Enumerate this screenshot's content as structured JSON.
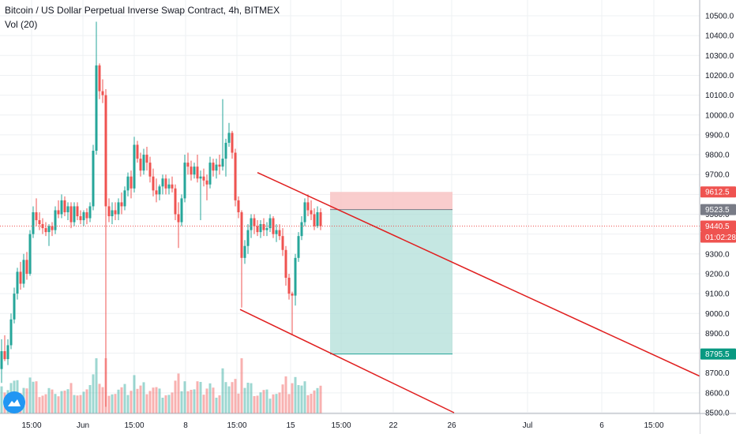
{
  "header": {
    "title": "Bitcoin / US Dollar Perpetual Inverse Swap Contract, 4h, BITMEX",
    "volume_indicator": "Vol (20)"
  },
  "colors": {
    "up": "#26a69a",
    "down": "#ef5350",
    "trend_line": "#e01f1f",
    "stop_zone": "#f8c8c8",
    "target_zone": "#b2dfd8",
    "grid": "#eef0f3"
  },
  "chart_data": {
    "type": "candlestick",
    "symbol": "XBTUSD",
    "exchange": "BITMEX",
    "interval": "4h",
    "ylim": [
      8500,
      10550
    ],
    "y_ticks": [
      "10500.0",
      "10400.0",
      "10300.0",
      "10200.0",
      "10100.0",
      "10000.0",
      "9900.0",
      "9800.0",
      "9700.0",
      "9600.0",
      "9500.0",
      "9400.0",
      "9300.0",
      "9200.0",
      "9100.0",
      "9000.0",
      "8900.0",
      "8800.0",
      "8700.0",
      "8600.0",
      "8500.0"
    ],
    "x_ticks": [
      "15:00",
      "Jun",
      "15:00",
      "8",
      "15:00",
      "15",
      "15:00",
      "22",
      "26",
      "Jul",
      "6",
      "15:00"
    ],
    "price_tags": [
      {
        "label": "9612.5",
        "value": 9612.5,
        "kind": "stop"
      },
      {
        "label": "9523.5",
        "value": 9523.5,
        "kind": "entry"
      },
      {
        "label": "9440.5",
        "value": 9440.5,
        "kind": "last"
      },
      {
        "label": "01:02:28",
        "value": 9440.5,
        "kind": "countdown"
      },
      {
        "label": "8795.5",
        "value": 8795.5,
        "kind": "target"
      }
    ],
    "position": {
      "side": "short",
      "entry": 9523.5,
      "stop": 9612.5,
      "target": 8795.5
    },
    "channel": [
      {
        "from": [
          326,
          9710
        ],
        "to": [
          932,
          8600
        ]
      },
      {
        "from": [
          304,
          9020
        ],
        "to": [
          575,
          8500
        ]
      }
    ],
    "candles": [
      {
        "x": 2,
        "o": 8720,
        "h": 8870,
        "l": 8650,
        "c": 8810
      },
      {
        "x": 6,
        "o": 8810,
        "h": 8890,
        "l": 8760,
        "c": 8770
      },
      {
        "x": 10,
        "o": 8770,
        "h": 8870,
        "l": 8740,
        "c": 8840
      },
      {
        "x": 14,
        "o": 8840,
        "h": 9000,
        "l": 8820,
        "c": 8970
      },
      {
        "x": 18,
        "o": 8970,
        "h": 9130,
        "l": 8950,
        "c": 9100
      },
      {
        "x": 22,
        "o": 9100,
        "h": 9230,
        "l": 9070,
        "c": 9210
      },
      {
        "x": 26,
        "o": 9210,
        "h": 9260,
        "l": 9120,
        "c": 9150
      },
      {
        "x": 30,
        "o": 9150,
        "h": 9300,
        "l": 9130,
        "c": 9270
      },
      {
        "x": 34,
        "o": 9270,
        "h": 9310,
        "l": 9170,
        "c": 9200
      },
      {
        "x": 38,
        "o": 9200,
        "h": 9420,
        "l": 9190,
        "c": 9400
      },
      {
        "x": 42,
        "o": 9400,
        "h": 9540,
        "l": 9380,
        "c": 9510
      },
      {
        "x": 46,
        "o": 9510,
        "h": 9580,
        "l": 9440,
        "c": 9470
      },
      {
        "x": 50,
        "o": 9470,
        "h": 9510,
        "l": 9420,
        "c": 9450
      },
      {
        "x": 54,
        "o": 9450,
        "h": 9480,
        "l": 9400,
        "c": 9430
      },
      {
        "x": 58,
        "o": 9430,
        "h": 9460,
        "l": 9390,
        "c": 9410
      },
      {
        "x": 62,
        "o": 9410,
        "h": 9450,
        "l": 9340,
        "c": 9440
      },
      {
        "x": 66,
        "o": 9440,
        "h": 9460,
        "l": 9390,
        "c": 9420
      },
      {
        "x": 70,
        "o": 9420,
        "h": 9540,
        "l": 9400,
        "c": 9520
      },
      {
        "x": 74,
        "o": 9520,
        "h": 9570,
        "l": 9480,
        "c": 9500
      },
      {
        "x": 78,
        "o": 9500,
        "h": 9600,
        "l": 9480,
        "c": 9570
      },
      {
        "x": 82,
        "o": 9570,
        "h": 9590,
        "l": 9490,
        "c": 9510
      },
      {
        "x": 86,
        "o": 9510,
        "h": 9560,
        "l": 9470,
        "c": 9540
      },
      {
        "x": 90,
        "o": 9540,
        "h": 9560,
        "l": 9430,
        "c": 9460
      },
      {
        "x": 94,
        "o": 9460,
        "h": 9560,
        "l": 9440,
        "c": 9540
      },
      {
        "x": 98,
        "o": 9540,
        "h": 9560,
        "l": 9470,
        "c": 9490
      },
      {
        "x": 102,
        "o": 9490,
        "h": 9520,
        "l": 9450,
        "c": 9470
      },
      {
        "x": 106,
        "o": 9470,
        "h": 9520,
        "l": 9440,
        "c": 9510
      },
      {
        "x": 110,
        "o": 9510,
        "h": 9530,
        "l": 9450,
        "c": 9480
      },
      {
        "x": 114,
        "o": 9480,
        "h": 9560,
        "l": 9460,
        "c": 9540
      },
      {
        "x": 118,
        "o": 9540,
        "h": 9850,
        "l": 9520,
        "c": 9820
      },
      {
        "x": 122,
        "o": 9820,
        "h": 10470,
        "l": 9800,
        "c": 10250
      },
      {
        "x": 126,
        "o": 10250,
        "h": 10260,
        "l": 10080,
        "c": 10120
      },
      {
        "x": 130,
        "o": 10120,
        "h": 10180,
        "l": 10060,
        "c": 10100
      },
      {
        "x": 134,
        "o": 10100,
        "h": 10130,
        "l": 8530,
        "c": 9540
      },
      {
        "x": 138,
        "o": 9540,
        "h": 9580,
        "l": 9460,
        "c": 9490
      },
      {
        "x": 142,
        "o": 9490,
        "h": 9560,
        "l": 9450,
        "c": 9520
      },
      {
        "x": 146,
        "o": 9520,
        "h": 9560,
        "l": 9470,
        "c": 9500
      },
      {
        "x": 150,
        "o": 9500,
        "h": 9580,
        "l": 9470,
        "c": 9560
      },
      {
        "x": 154,
        "o": 9560,
        "h": 9610,
        "l": 9500,
        "c": 9540
      },
      {
        "x": 158,
        "o": 9540,
        "h": 9640,
        "l": 9520,
        "c": 9620
      },
      {
        "x": 162,
        "o": 9620,
        "h": 9710,
        "l": 9590,
        "c": 9690
      },
      {
        "x": 166,
        "o": 9690,
        "h": 9720,
        "l": 9580,
        "c": 9630
      },
      {
        "x": 170,
        "o": 9630,
        "h": 9890,
        "l": 9610,
        "c": 9850
      },
      {
        "x": 174,
        "o": 9850,
        "h": 9870,
        "l": 9760,
        "c": 9780
      },
      {
        "x": 178,
        "o": 9780,
        "h": 9810,
        "l": 9690,
        "c": 9720
      },
      {
        "x": 182,
        "o": 9720,
        "h": 9830,
        "l": 9700,
        "c": 9800
      },
      {
        "x": 186,
        "o": 9800,
        "h": 9840,
        "l": 9720,
        "c": 9760
      },
      {
        "x": 190,
        "o": 9760,
        "h": 9790,
        "l": 9660,
        "c": 9690
      },
      {
        "x": 194,
        "o": 9690,
        "h": 9730,
        "l": 9590,
        "c": 9620
      },
      {
        "x": 198,
        "o": 9620,
        "h": 9680,
        "l": 9560,
        "c": 9600
      },
      {
        "x": 202,
        "o": 9600,
        "h": 9650,
        "l": 9570,
        "c": 9640
      },
      {
        "x": 206,
        "o": 9640,
        "h": 9700,
        "l": 9600,
        "c": 9680
      },
      {
        "x": 210,
        "o": 9680,
        "h": 9700,
        "l": 9600,
        "c": 9630
      },
      {
        "x": 214,
        "o": 9630,
        "h": 9680,
        "l": 9600,
        "c": 9650
      },
      {
        "x": 218,
        "o": 9650,
        "h": 9690,
        "l": 9610,
        "c": 9630
      },
      {
        "x": 222,
        "o": 9630,
        "h": 9650,
        "l": 9470,
        "c": 9500
      },
      {
        "x": 226,
        "o": 9500,
        "h": 9560,
        "l": 9330,
        "c": 9460
      },
      {
        "x": 230,
        "o": 9460,
        "h": 9600,
        "l": 9440,
        "c": 9580
      },
      {
        "x": 234,
        "o": 9580,
        "h": 9800,
        "l": 9560,
        "c": 9760
      },
      {
        "x": 238,
        "o": 9760,
        "h": 9810,
        "l": 9700,
        "c": 9740
      },
      {
        "x": 242,
        "o": 9740,
        "h": 9770,
        "l": 9670,
        "c": 9700
      },
      {
        "x": 246,
        "o": 9700,
        "h": 9760,
        "l": 9680,
        "c": 9740
      },
      {
        "x": 250,
        "o": 9740,
        "h": 9800,
        "l": 9660,
        "c": 9680
      },
      {
        "x": 254,
        "o": 9680,
        "h": 9720,
        "l": 9470,
        "c": 9690
      },
      {
        "x": 258,
        "o": 9690,
        "h": 9730,
        "l": 9640,
        "c": 9670
      },
      {
        "x": 262,
        "o": 9670,
        "h": 9700,
        "l": 9570,
        "c": 9650
      },
      {
        "x": 266,
        "o": 9650,
        "h": 9790,
        "l": 9630,
        "c": 9760
      },
      {
        "x": 270,
        "o": 9760,
        "h": 9780,
        "l": 9690,
        "c": 9720
      },
      {
        "x": 274,
        "o": 9720,
        "h": 9780,
        "l": 9680,
        "c": 9750
      },
      {
        "x": 278,
        "o": 9750,
        "h": 9800,
        "l": 9700,
        "c": 9740
      },
      {
        "x": 282,
        "o": 9740,
        "h": 10080,
        "l": 9720,
        "c": 9780
      },
      {
        "x": 286,
        "o": 9780,
        "h": 9880,
        "l": 9690,
        "c": 9860
      },
      {
        "x": 290,
        "o": 9860,
        "h": 9960,
        "l": 9840,
        "c": 9910
      },
      {
        "x": 294,
        "o": 9910,
        "h": 9920,
        "l": 9780,
        "c": 9810
      },
      {
        "x": 298,
        "o": 9810,
        "h": 9830,
        "l": 9540,
        "c": 9570
      },
      {
        "x": 302,
        "o": 9570,
        "h": 9590,
        "l": 9480,
        "c": 9510
      },
      {
        "x": 306,
        "o": 9510,
        "h": 9520,
        "l": 9030,
        "c": 9280
      },
      {
        "x": 310,
        "o": 9280,
        "h": 9370,
        "l": 9250,
        "c": 9340
      },
      {
        "x": 314,
        "o": 9340,
        "h": 9450,
        "l": 9300,
        "c": 9420
      },
      {
        "x": 318,
        "o": 9420,
        "h": 9500,
        "l": 9380,
        "c": 9480
      },
      {
        "x": 322,
        "o": 9480,
        "h": 9500,
        "l": 9400,
        "c": 9440
      },
      {
        "x": 326,
        "o": 9440,
        "h": 9470,
        "l": 9390,
        "c": 9410
      },
      {
        "x": 330,
        "o": 9410,
        "h": 9470,
        "l": 9380,
        "c": 9450
      },
      {
        "x": 334,
        "o": 9450,
        "h": 9480,
        "l": 9390,
        "c": 9420
      },
      {
        "x": 338,
        "o": 9420,
        "h": 9460,
        "l": 9390,
        "c": 9430
      },
      {
        "x": 342,
        "o": 9430,
        "h": 9500,
        "l": 9410,
        "c": 9480
      },
      {
        "x": 346,
        "o": 9480,
        "h": 9490,
        "l": 9380,
        "c": 9400
      },
      {
        "x": 350,
        "o": 9400,
        "h": 9450,
        "l": 9360,
        "c": 9420
      },
      {
        "x": 354,
        "o": 9420,
        "h": 9450,
        "l": 9370,
        "c": 9390
      },
      {
        "x": 358,
        "o": 9390,
        "h": 9430,
        "l": 9290,
        "c": 9320
      },
      {
        "x": 362,
        "o": 9320,
        "h": 9340,
        "l": 9140,
        "c": 9180
      },
      {
        "x": 366,
        "o": 9180,
        "h": 9200,
        "l": 9070,
        "c": 9100
      },
      {
        "x": 370,
        "o": 9100,
        "h": 9110,
        "l": 8890,
        "c": 9090
      },
      {
        "x": 374,
        "o": 9090,
        "h": 9300,
        "l": 9040,
        "c": 9280
      },
      {
        "x": 378,
        "o": 9280,
        "h": 9410,
        "l": 9260,
        "c": 9390
      },
      {
        "x": 382,
        "o": 9390,
        "h": 9490,
        "l": 9370,
        "c": 9460
      },
      {
        "x": 386,
        "o": 9460,
        "h": 9580,
        "l": 9440,
        "c": 9560
      },
      {
        "x": 390,
        "o": 9560,
        "h": 9600,
        "l": 9490,
        "c": 9520
      },
      {
        "x": 394,
        "o": 9520,
        "h": 9570,
        "l": 9470,
        "c": 9500
      },
      {
        "x": 398,
        "o": 9500,
        "h": 9530,
        "l": 9420,
        "c": 9440
      },
      {
        "x": 402,
        "o": 9440,
        "h": 9540,
        "l": 9430,
        "c": 9510
      },
      {
        "x": 406,
        "o": 9510,
        "h": 9530,
        "l": 9420,
        "c": 9440
      }
    ]
  }
}
